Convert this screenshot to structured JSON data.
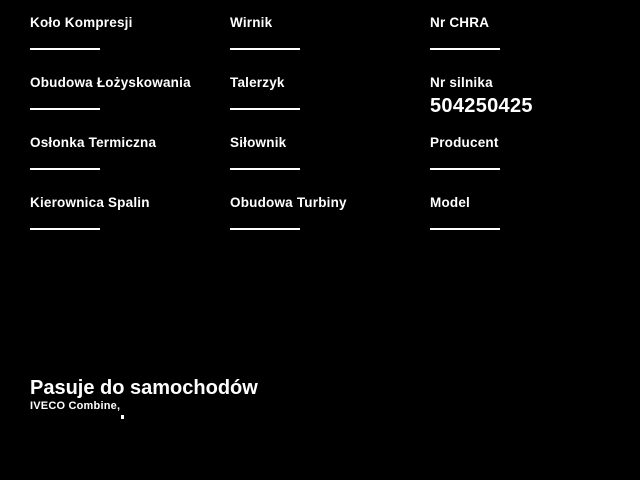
{
  "page": {
    "background": "#000000",
    "text_color": "#ffffff"
  },
  "fields": [
    {
      "id": "kolo-kompresji",
      "label": "Koło Kompresji",
      "value": ""
    },
    {
      "id": "wirnik",
      "label": "Wirnik",
      "value": ""
    },
    {
      "id": "nr-chra",
      "label": "Nr CHRA",
      "value": ""
    },
    {
      "id": "obudowa-lozyskowania",
      "label": "Obudowa Łożyskowania",
      "value": ""
    },
    {
      "id": "talerzyk",
      "label": "Talerzyk",
      "value": ""
    },
    {
      "id": "nr-silnika",
      "label": "Nr silnika",
      "value": "504250425"
    },
    {
      "id": "oslonka-termiczna",
      "label": "Osłonka Termiczna",
      "value": ""
    },
    {
      "id": "silownik",
      "label": "Siłownik",
      "value": ""
    },
    {
      "id": "producent",
      "label": "Producent",
      "value": ""
    },
    {
      "id": "kierownica-spalin",
      "label": "Kierownica Spalin",
      "value": ""
    },
    {
      "id": "obudowa-turbiny",
      "label": "Obudowa Turbiny",
      "value": ""
    },
    {
      "id": "model",
      "label": "Model",
      "value": ""
    }
  ],
  "compatibility": {
    "heading": "Pasuje do samochodów",
    "vehicles_line": "IVECO Combine,"
  }
}
